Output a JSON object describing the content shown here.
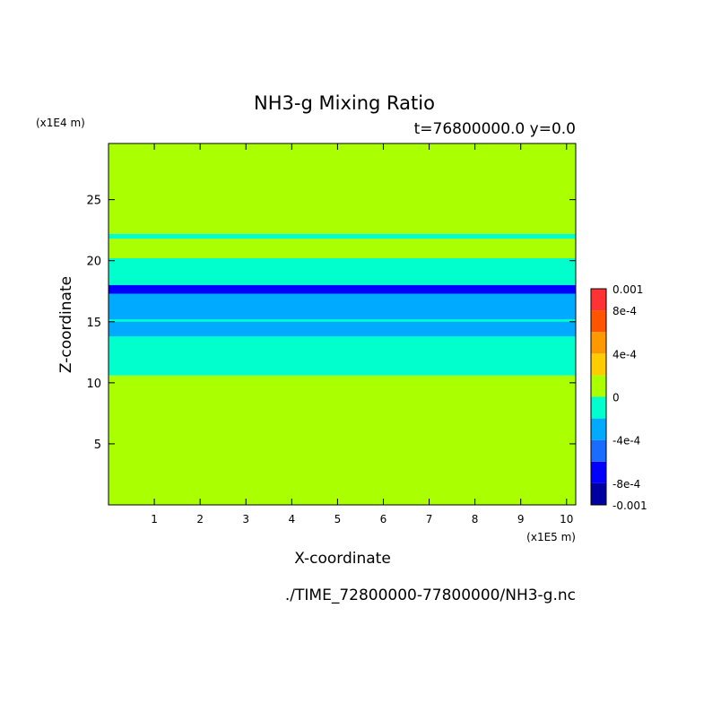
{
  "chart_data": {
    "type": "heatmap",
    "title": "NH3-g Mixing Ratio",
    "subtitle": "t=76800000.0 y=0.0",
    "xlabel": "X-coordinate",
    "ylabel": "Z-coordinate",
    "x_unit": "(x1E5 m)",
    "y_unit": "(x1E4 m)",
    "xlim": [
      0,
      10.2
    ],
    "ylim": [
      0,
      29.6
    ],
    "x_ticks": [
      1,
      2,
      3,
      4,
      5,
      6,
      7,
      8,
      9,
      10
    ],
    "y_ticks": [
      5,
      10,
      15,
      20,
      25
    ],
    "footer": "./TIME_72800000-77800000/NH3-g.nc",
    "colorbar": {
      "levels": [
        -0.001,
        -0.0008,
        -0.0006,
        -0.0004,
        -0.0002,
        0,
        0.0002,
        0.0004,
        0.0006,
        0.0008,
        0.001
      ],
      "colors": [
        "#0000a0",
        "#0000ff",
        "#1a6bff",
        "#00aaff",
        "#00ffcc",
        "#aaff00",
        "#ffcc00",
        "#ff9900",
        "#ff5500",
        "#ff3333"
      ],
      "tick_labels": [
        {
          "label": "0.001",
          "value": 0.001
        },
        {
          "label": "8e-4",
          "value": 0.0008
        },
        {
          "label": "4e-4",
          "value": 0.0004
        },
        {
          "label": "0",
          "value": 0
        },
        {
          "label": "-4e-4",
          "value": -0.0004
        },
        {
          "label": "-8e-4",
          "value": -0.0008
        },
        {
          "label": "-0.001",
          "value": -0.001
        }
      ]
    },
    "regions": [
      {
        "level": 5,
        "z_range": [
          0,
          10.6
        ],
        "note": "background"
      },
      {
        "level": 4,
        "z_range": [
          10.6,
          20.2
        ]
      },
      {
        "level": 3,
        "z_range": [
          13.8,
          15.0
        ]
      },
      {
        "level": 3,
        "z_range": [
          15.2,
          17.6
        ]
      },
      {
        "level": 1,
        "z_range": [
          17.3,
          18.0
        ]
      },
      {
        "level": 5,
        "z_range": [
          20.2,
          21.8
        ]
      },
      {
        "level": 4,
        "z_range": [
          21.8,
          22.2
        ]
      },
      {
        "level": 5,
        "z_range": [
          22.2,
          29.6
        ]
      }
    ]
  }
}
